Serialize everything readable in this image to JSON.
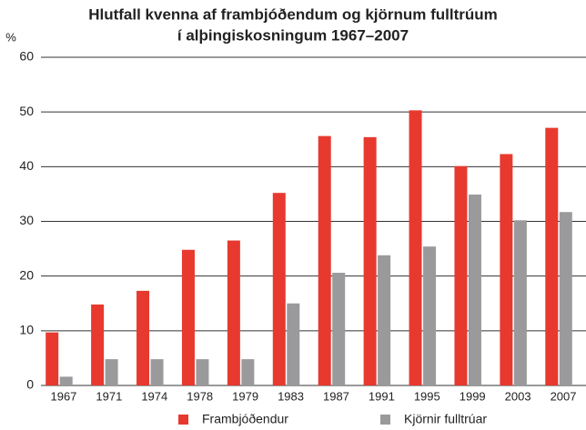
{
  "chart_data": {
    "type": "bar",
    "title": "Hlutfall kvenna af frambjóðendum og kjörnum fulltrúum",
    "subtitle": "í alþingiskosningum 1967–2007",
    "y_label": "%",
    "categories": [
      "1967",
      "1971",
      "1974",
      "1978",
      "1979",
      "1983",
      "1987",
      "1991",
      "1995",
      "1999",
      "2003",
      "2007"
    ],
    "series": [
      {
        "name": "Frambjóðendur",
        "color": "#e8392f",
        "values": [
          9.7,
          14.8,
          17.3,
          24.8,
          26.5,
          35.2,
          45.6,
          45.4,
          50.3,
          40.1,
          42.3,
          47.1
        ]
      },
      {
        "name": "Kjörnir fulltrúar",
        "color": "#9a9a9c",
        "values": [
          1.6,
          4.8,
          4.8,
          4.8,
          4.8,
          15.0,
          20.6,
          23.8,
          25.4,
          34.9,
          30.2,
          31.7
        ]
      }
    ],
    "ylim": [
      0,
      60
    ],
    "yticks": [
      0,
      10,
      20,
      30,
      40,
      50,
      60
    ],
    "grid": true,
    "legend": "bottom"
  }
}
